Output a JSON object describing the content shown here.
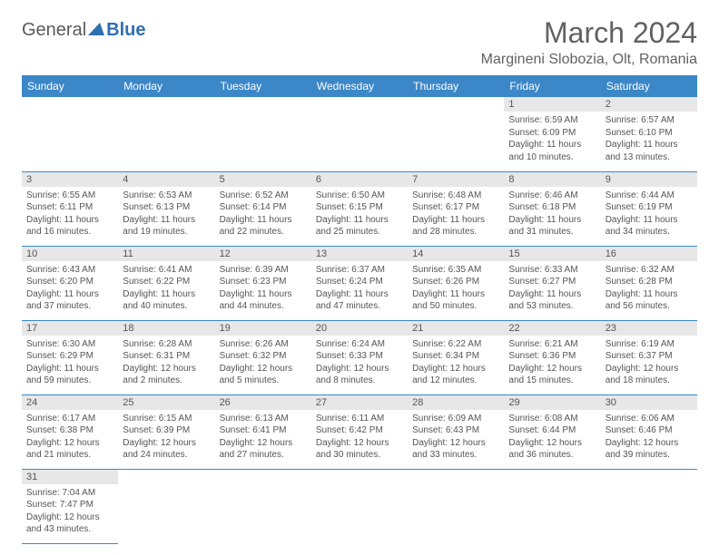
{
  "logo": {
    "general": "General",
    "blue": "Blue"
  },
  "title": "March 2024",
  "location": "Margineni Slobozia, Olt, Romania",
  "colors": {
    "header_bg": "#3b87c8",
    "header_text": "#ffffff",
    "daynum_bg": "#e7e7e7",
    "border": "#3b87c8",
    "body_text": "#555555",
    "title_text": "#616161",
    "logo_blue": "#2f6fb0"
  },
  "typography": {
    "title_fontsize": 32,
    "location_fontsize": 16,
    "dayhead_fontsize": 12,
    "daynum_fontsize": 11,
    "cell_fontsize": 10
  },
  "day_headers": [
    "Sunday",
    "Monday",
    "Tuesday",
    "Wednesday",
    "Thursday",
    "Friday",
    "Saturday"
  ],
  "weeks": [
    [
      null,
      null,
      null,
      null,
      null,
      {
        "n": "1",
        "sr": "Sunrise: 6:59 AM",
        "ss": "Sunset: 6:09 PM",
        "dl1": "Daylight: 11 hours",
        "dl2": "and 10 minutes."
      },
      {
        "n": "2",
        "sr": "Sunrise: 6:57 AM",
        "ss": "Sunset: 6:10 PM",
        "dl1": "Daylight: 11 hours",
        "dl2": "and 13 minutes."
      }
    ],
    [
      {
        "n": "3",
        "sr": "Sunrise: 6:55 AM",
        "ss": "Sunset: 6:11 PM",
        "dl1": "Daylight: 11 hours",
        "dl2": "and 16 minutes."
      },
      {
        "n": "4",
        "sr": "Sunrise: 6:53 AM",
        "ss": "Sunset: 6:13 PM",
        "dl1": "Daylight: 11 hours",
        "dl2": "and 19 minutes."
      },
      {
        "n": "5",
        "sr": "Sunrise: 6:52 AM",
        "ss": "Sunset: 6:14 PM",
        "dl1": "Daylight: 11 hours",
        "dl2": "and 22 minutes."
      },
      {
        "n": "6",
        "sr": "Sunrise: 6:50 AM",
        "ss": "Sunset: 6:15 PM",
        "dl1": "Daylight: 11 hours",
        "dl2": "and 25 minutes."
      },
      {
        "n": "7",
        "sr": "Sunrise: 6:48 AM",
        "ss": "Sunset: 6:17 PM",
        "dl1": "Daylight: 11 hours",
        "dl2": "and 28 minutes."
      },
      {
        "n": "8",
        "sr": "Sunrise: 6:46 AM",
        "ss": "Sunset: 6:18 PM",
        "dl1": "Daylight: 11 hours",
        "dl2": "and 31 minutes."
      },
      {
        "n": "9",
        "sr": "Sunrise: 6:44 AM",
        "ss": "Sunset: 6:19 PM",
        "dl1": "Daylight: 11 hours",
        "dl2": "and 34 minutes."
      }
    ],
    [
      {
        "n": "10",
        "sr": "Sunrise: 6:43 AM",
        "ss": "Sunset: 6:20 PM",
        "dl1": "Daylight: 11 hours",
        "dl2": "and 37 minutes."
      },
      {
        "n": "11",
        "sr": "Sunrise: 6:41 AM",
        "ss": "Sunset: 6:22 PM",
        "dl1": "Daylight: 11 hours",
        "dl2": "and 40 minutes."
      },
      {
        "n": "12",
        "sr": "Sunrise: 6:39 AM",
        "ss": "Sunset: 6:23 PM",
        "dl1": "Daylight: 11 hours",
        "dl2": "and 44 minutes."
      },
      {
        "n": "13",
        "sr": "Sunrise: 6:37 AM",
        "ss": "Sunset: 6:24 PM",
        "dl1": "Daylight: 11 hours",
        "dl2": "and 47 minutes."
      },
      {
        "n": "14",
        "sr": "Sunrise: 6:35 AM",
        "ss": "Sunset: 6:26 PM",
        "dl1": "Daylight: 11 hours",
        "dl2": "and 50 minutes."
      },
      {
        "n": "15",
        "sr": "Sunrise: 6:33 AM",
        "ss": "Sunset: 6:27 PM",
        "dl1": "Daylight: 11 hours",
        "dl2": "and 53 minutes."
      },
      {
        "n": "16",
        "sr": "Sunrise: 6:32 AM",
        "ss": "Sunset: 6:28 PM",
        "dl1": "Daylight: 11 hours",
        "dl2": "and 56 minutes."
      }
    ],
    [
      {
        "n": "17",
        "sr": "Sunrise: 6:30 AM",
        "ss": "Sunset: 6:29 PM",
        "dl1": "Daylight: 11 hours",
        "dl2": "and 59 minutes."
      },
      {
        "n": "18",
        "sr": "Sunrise: 6:28 AM",
        "ss": "Sunset: 6:31 PM",
        "dl1": "Daylight: 12 hours",
        "dl2": "and 2 minutes."
      },
      {
        "n": "19",
        "sr": "Sunrise: 6:26 AM",
        "ss": "Sunset: 6:32 PM",
        "dl1": "Daylight: 12 hours",
        "dl2": "and 5 minutes."
      },
      {
        "n": "20",
        "sr": "Sunrise: 6:24 AM",
        "ss": "Sunset: 6:33 PM",
        "dl1": "Daylight: 12 hours",
        "dl2": "and 8 minutes."
      },
      {
        "n": "21",
        "sr": "Sunrise: 6:22 AM",
        "ss": "Sunset: 6:34 PM",
        "dl1": "Daylight: 12 hours",
        "dl2": "and 12 minutes."
      },
      {
        "n": "22",
        "sr": "Sunrise: 6:21 AM",
        "ss": "Sunset: 6:36 PM",
        "dl1": "Daylight: 12 hours",
        "dl2": "and 15 minutes."
      },
      {
        "n": "23",
        "sr": "Sunrise: 6:19 AM",
        "ss": "Sunset: 6:37 PM",
        "dl1": "Daylight: 12 hours",
        "dl2": "and 18 minutes."
      }
    ],
    [
      {
        "n": "24",
        "sr": "Sunrise: 6:17 AM",
        "ss": "Sunset: 6:38 PM",
        "dl1": "Daylight: 12 hours",
        "dl2": "and 21 minutes."
      },
      {
        "n": "25",
        "sr": "Sunrise: 6:15 AM",
        "ss": "Sunset: 6:39 PM",
        "dl1": "Daylight: 12 hours",
        "dl2": "and 24 minutes."
      },
      {
        "n": "26",
        "sr": "Sunrise: 6:13 AM",
        "ss": "Sunset: 6:41 PM",
        "dl1": "Daylight: 12 hours",
        "dl2": "and 27 minutes."
      },
      {
        "n": "27",
        "sr": "Sunrise: 6:11 AM",
        "ss": "Sunset: 6:42 PM",
        "dl1": "Daylight: 12 hours",
        "dl2": "and 30 minutes."
      },
      {
        "n": "28",
        "sr": "Sunrise: 6:09 AM",
        "ss": "Sunset: 6:43 PM",
        "dl1": "Daylight: 12 hours",
        "dl2": "and 33 minutes."
      },
      {
        "n": "29",
        "sr": "Sunrise: 6:08 AM",
        "ss": "Sunset: 6:44 PM",
        "dl1": "Daylight: 12 hours",
        "dl2": "and 36 minutes."
      },
      {
        "n": "30",
        "sr": "Sunrise: 6:06 AM",
        "ss": "Sunset: 6:46 PM",
        "dl1": "Daylight: 12 hours",
        "dl2": "and 39 minutes."
      }
    ],
    [
      {
        "n": "31",
        "sr": "Sunrise: 7:04 AM",
        "ss": "Sunset: 7:47 PM",
        "dl1": "Daylight: 12 hours",
        "dl2": "and 43 minutes."
      },
      null,
      null,
      null,
      null,
      null,
      null
    ]
  ]
}
